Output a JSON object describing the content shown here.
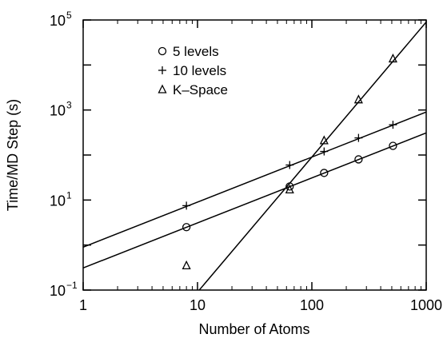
{
  "chart_data": {
    "type": "scatter",
    "title": "",
    "xlabel": "Number of Atoms",
    "ylabel": "Time/MD Step (s)",
    "xscale": "log",
    "yscale": "log",
    "xlim": [
      1,
      1000
    ],
    "ylim": [
      0.1,
      100000
    ],
    "x_ticks": [
      {
        "value": 1,
        "label": "1"
      },
      {
        "value": 10,
        "label": "10"
      },
      {
        "value": 100,
        "label": "100"
      },
      {
        "value": 1000,
        "label": "1000"
      }
    ],
    "y_ticks": [
      {
        "value": 0.1,
        "base": "10",
        "exp": "−1"
      },
      {
        "value": 10,
        "base": "10",
        "exp": "1"
      },
      {
        "value": 1000,
        "base": "10",
        "exp": "3"
      },
      {
        "value": 100000,
        "base": "10",
        "exp": "5"
      }
    ],
    "grid": false,
    "legend_position": "top-left",
    "series": [
      {
        "name": "5 levels",
        "marker": "circle",
        "points": [
          [
            8,
            2.5
          ],
          [
            64,
            20
          ],
          [
            128,
            40
          ],
          [
            256,
            80
          ],
          [
            512,
            160
          ]
        ],
        "fit_line": [
          [
            1,
            0.31
          ],
          [
            1000,
            310
          ]
        ]
      },
      {
        "name": "10 levels",
        "marker": "plus",
        "points": [
          [
            8,
            7.5
          ],
          [
            64,
            60
          ],
          [
            128,
            120
          ],
          [
            256,
            240
          ],
          [
            512,
            470
          ]
        ],
        "fit_line": [
          [
            1,
            0.9
          ],
          [
            1000,
            900
          ]
        ]
      },
      {
        "name": "K–Space",
        "marker": "triangle",
        "points": [
          [
            8,
            0.35
          ],
          [
            64,
            17
          ],
          [
            128,
            210
          ],
          [
            256,
            1700
          ],
          [
            512,
            13800
          ]
        ],
        "fit_line": [
          [
            10,
            0.09
          ],
          [
            1000,
            90000
          ]
        ]
      }
    ]
  }
}
